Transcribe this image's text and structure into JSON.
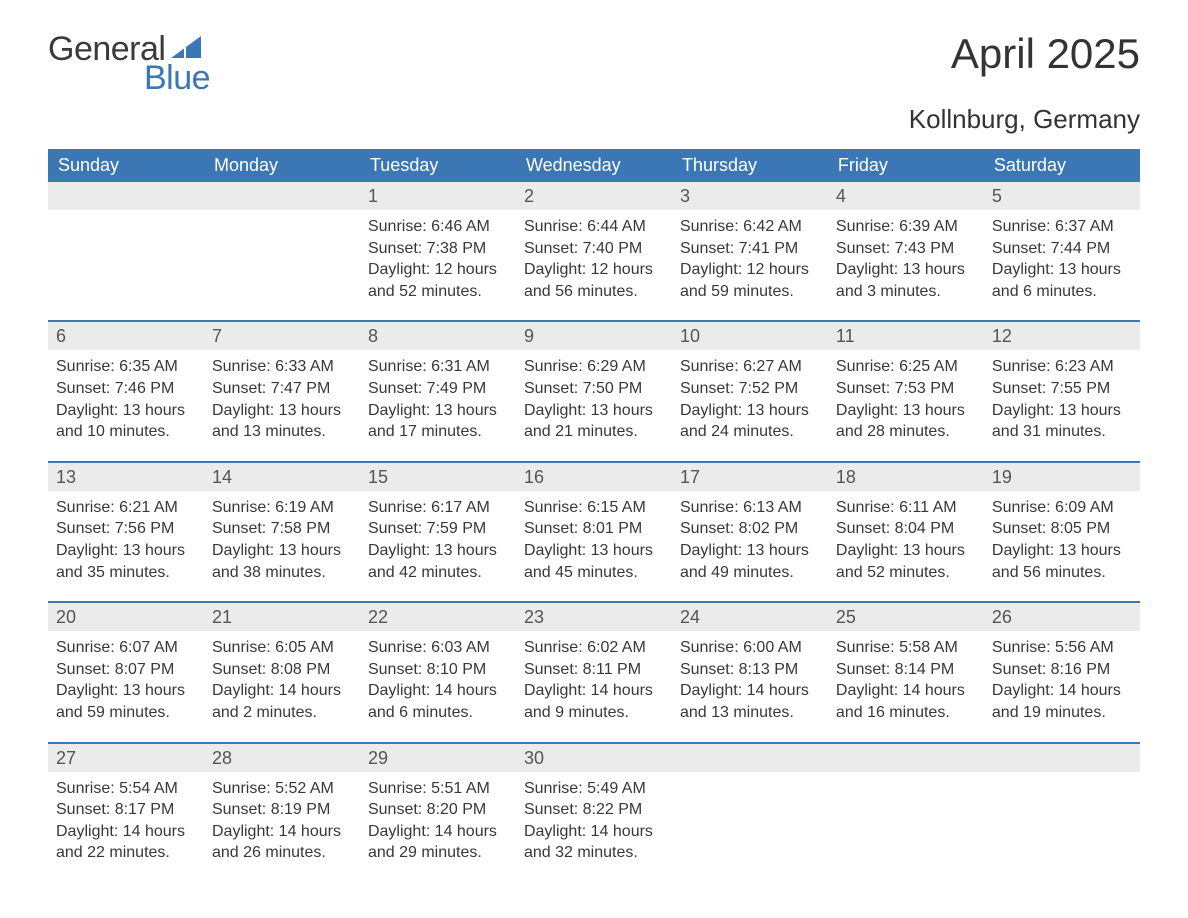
{
  "logo": {
    "word1": "General",
    "word2": "Blue",
    "icon_color": "#3b76b5"
  },
  "title": "April 2025",
  "location": "Kollnburg, Germany",
  "dow": [
    "Sunday",
    "Monday",
    "Tuesday",
    "Wednesday",
    "Thursday",
    "Friday",
    "Saturday"
  ],
  "colors": {
    "header_bg": "#3b76b5",
    "header_text": "#ffffff",
    "daynum_bg": "#ebebeb",
    "week_border": "#3b76b5",
    "page_bg": "#ffffff",
    "text": "#383838"
  },
  "typography": {
    "title_fontsize": 42,
    "location_fontsize": 26,
    "dow_fontsize": 18,
    "daynum_fontsize": 18,
    "body_fontsize": 16
  },
  "weeks": [
    [
      {
        "day": null
      },
      {
        "day": null
      },
      {
        "day": 1,
        "sunrise": "6:46 AM",
        "sunset": "7:38 PM",
        "daylight": "12 hours and 52 minutes."
      },
      {
        "day": 2,
        "sunrise": "6:44 AM",
        "sunset": "7:40 PM",
        "daylight": "12 hours and 56 minutes."
      },
      {
        "day": 3,
        "sunrise": "6:42 AM",
        "sunset": "7:41 PM",
        "daylight": "12 hours and 59 minutes."
      },
      {
        "day": 4,
        "sunrise": "6:39 AM",
        "sunset": "7:43 PM",
        "daylight": "13 hours and 3 minutes."
      },
      {
        "day": 5,
        "sunrise": "6:37 AM",
        "sunset": "7:44 PM",
        "daylight": "13 hours and 6 minutes."
      }
    ],
    [
      {
        "day": 6,
        "sunrise": "6:35 AM",
        "sunset": "7:46 PM",
        "daylight": "13 hours and 10 minutes."
      },
      {
        "day": 7,
        "sunrise": "6:33 AM",
        "sunset": "7:47 PM",
        "daylight": "13 hours and 13 minutes."
      },
      {
        "day": 8,
        "sunrise": "6:31 AM",
        "sunset": "7:49 PM",
        "daylight": "13 hours and 17 minutes."
      },
      {
        "day": 9,
        "sunrise": "6:29 AM",
        "sunset": "7:50 PM",
        "daylight": "13 hours and 21 minutes."
      },
      {
        "day": 10,
        "sunrise": "6:27 AM",
        "sunset": "7:52 PM",
        "daylight": "13 hours and 24 minutes."
      },
      {
        "day": 11,
        "sunrise": "6:25 AM",
        "sunset": "7:53 PM",
        "daylight": "13 hours and 28 minutes."
      },
      {
        "day": 12,
        "sunrise": "6:23 AM",
        "sunset": "7:55 PM",
        "daylight": "13 hours and 31 minutes."
      }
    ],
    [
      {
        "day": 13,
        "sunrise": "6:21 AM",
        "sunset": "7:56 PM",
        "daylight": "13 hours and 35 minutes."
      },
      {
        "day": 14,
        "sunrise": "6:19 AM",
        "sunset": "7:58 PM",
        "daylight": "13 hours and 38 minutes."
      },
      {
        "day": 15,
        "sunrise": "6:17 AM",
        "sunset": "7:59 PM",
        "daylight": "13 hours and 42 minutes."
      },
      {
        "day": 16,
        "sunrise": "6:15 AM",
        "sunset": "8:01 PM",
        "daylight": "13 hours and 45 minutes."
      },
      {
        "day": 17,
        "sunrise": "6:13 AM",
        "sunset": "8:02 PM",
        "daylight": "13 hours and 49 minutes."
      },
      {
        "day": 18,
        "sunrise": "6:11 AM",
        "sunset": "8:04 PM",
        "daylight": "13 hours and 52 minutes."
      },
      {
        "day": 19,
        "sunrise": "6:09 AM",
        "sunset": "8:05 PM",
        "daylight": "13 hours and 56 minutes."
      }
    ],
    [
      {
        "day": 20,
        "sunrise": "6:07 AM",
        "sunset": "8:07 PM",
        "daylight": "13 hours and 59 minutes."
      },
      {
        "day": 21,
        "sunrise": "6:05 AM",
        "sunset": "8:08 PM",
        "daylight": "14 hours and 2 minutes."
      },
      {
        "day": 22,
        "sunrise": "6:03 AM",
        "sunset": "8:10 PM",
        "daylight": "14 hours and 6 minutes."
      },
      {
        "day": 23,
        "sunrise": "6:02 AM",
        "sunset": "8:11 PM",
        "daylight": "14 hours and 9 minutes."
      },
      {
        "day": 24,
        "sunrise": "6:00 AM",
        "sunset": "8:13 PM",
        "daylight": "14 hours and 13 minutes."
      },
      {
        "day": 25,
        "sunrise": "5:58 AM",
        "sunset": "8:14 PM",
        "daylight": "14 hours and 16 minutes."
      },
      {
        "day": 26,
        "sunrise": "5:56 AM",
        "sunset": "8:16 PM",
        "daylight": "14 hours and 19 minutes."
      }
    ],
    [
      {
        "day": 27,
        "sunrise": "5:54 AM",
        "sunset": "8:17 PM",
        "daylight": "14 hours and 22 minutes."
      },
      {
        "day": 28,
        "sunrise": "5:52 AM",
        "sunset": "8:19 PM",
        "daylight": "14 hours and 26 minutes."
      },
      {
        "day": 29,
        "sunrise": "5:51 AM",
        "sunset": "8:20 PM",
        "daylight": "14 hours and 29 minutes."
      },
      {
        "day": 30,
        "sunrise": "5:49 AM",
        "sunset": "8:22 PM",
        "daylight": "14 hours and 32 minutes."
      },
      {
        "day": null
      },
      {
        "day": null
      },
      {
        "day": null
      }
    ]
  ],
  "labels": {
    "sunrise_prefix": "Sunrise: ",
    "sunset_prefix": "Sunset: ",
    "daylight_prefix": "Daylight: "
  }
}
